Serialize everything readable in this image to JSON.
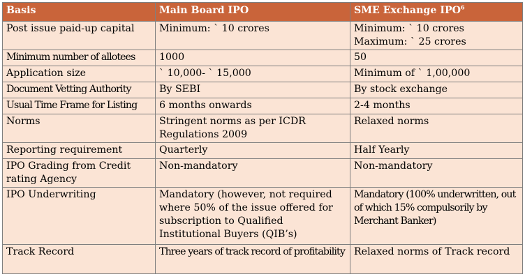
{
  "table": {
    "headers": {
      "basis": "Basis",
      "main": "Main Board IPO",
      "sme": "SME Exchange IPO",
      "sme_note": "6"
    },
    "rows": [
      {
        "basis": "Post issue paid-up capital",
        "main": "Minimum: ` 10 crores",
        "sme": "Minimum: ` 10 crores Maximum: ` 25 crores"
      },
      {
        "basis": "Minimum number of allotees",
        "main": "1000",
        "sme": "50"
      },
      {
        "basis": "Application size",
        "main": "` 10,000- ` 15,000",
        "sme": "Minimum of ` 1,00,000"
      },
      {
        "basis": "Document Vetting Authority",
        "main": "By SEBI",
        "sme": "By stock exchange"
      },
      {
        "basis": "Usual Time Frame for Listing",
        "main": "6 months onwards",
        "sme": "2-4 months"
      },
      {
        "basis": "Norms",
        "main": "Stringent norms as per ICDR Regulations 2009",
        "sme": "Relaxed norms"
      },
      {
        "basis": "Reporting requirement",
        "main": "Quarterly",
        "sme": "Half Yearly"
      },
      {
        "basis": "IPO Grading from Credit rating Agency",
        "main": "Non-mandatory",
        "sme": "Non-mandatory"
      },
      {
        "basis": "IPO Underwriting",
        "main": "Mandatory (however, not required where 50% of the issue offered for subscription to Qualified Institutional Buyers (QIB’s)",
        "sme": "Mandatory (100% underwritten, out of which 15% compulsorily by Merchant Banker)"
      },
      {
        "basis": "Track Record",
        "main": "Three years of track record of profitability",
        "sme": "Relaxed norms of Track record"
      }
    ]
  }
}
